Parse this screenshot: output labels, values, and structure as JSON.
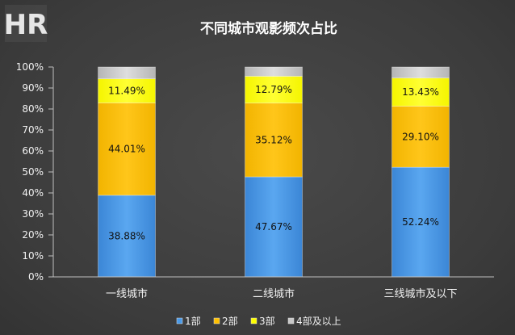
{
  "chart_data": {
    "type": "bar",
    "stacked": true,
    "title": "不同城市观影频次占比",
    "categories": [
      "一线城市",
      "二线城市",
      "三线城市及以下"
    ],
    "series": [
      {
        "name": "1部",
        "color": "#4a9ae8",
        "values": [
          38.88,
          47.67,
          52.24
        ]
      },
      {
        "name": "2部",
        "color": "#ffc000",
        "values": [
          44.01,
          35.12,
          29.1
        ]
      },
      {
        "name": "3部",
        "color": "#ffff00",
        "values": [
          11.49,
          12.79,
          13.43
        ]
      },
      {
        "name": "4部及以上",
        "color": "#c8c8c8",
        "values": [
          5.62,
          4.42,
          5.23
        ]
      }
    ],
    "data_labels": [
      [
        "38.88%",
        "47.67%",
        "52.24%"
      ],
      [
        "44.01%",
        "35.12%",
        "29.10%"
      ],
      [
        "11.49%",
        "12.79%",
        "13.43%"
      ]
    ],
    "ylim": [
      0,
      100
    ],
    "yticks": [
      "0%",
      "10%",
      "20%",
      "30%",
      "40%",
      "50%",
      "60%",
      "70%",
      "80%",
      "90%",
      "100%"
    ],
    "xlabel": "",
    "ylabel": "",
    "grid": false,
    "legend_position": "bottom"
  },
  "logo": {
    "text": "HR"
  }
}
